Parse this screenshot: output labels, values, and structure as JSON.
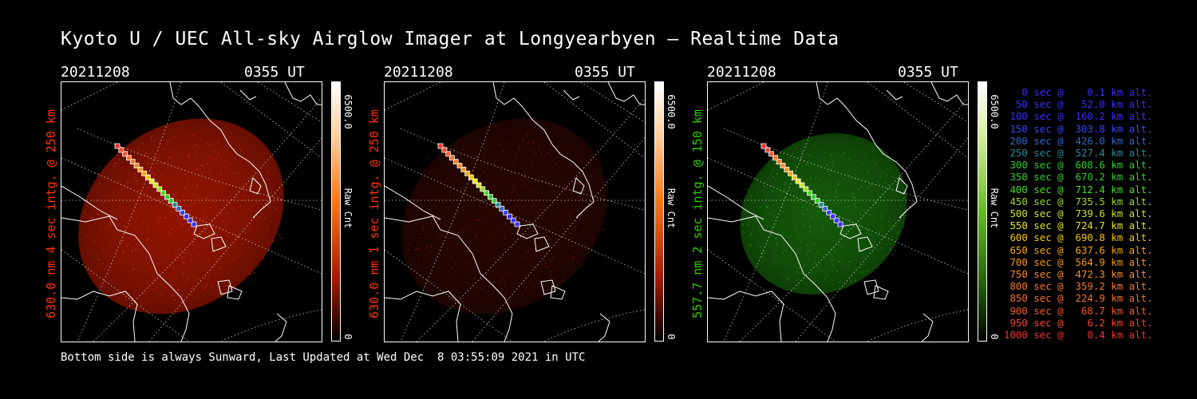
{
  "title": "Kyoto U / UEC All-sky Airglow Imager at Longyearbyen — Realtime Data",
  "footer": "Bottom side is always Sunward, Last Updated at Wed Dec  8 03:55:09 2021 in UTC",
  "colors": {
    "background": "#000000",
    "red_emission": "#b81a00",
    "green_emission": "#1f8c0e",
    "axis_label_red": "#ff3300",
    "axis_label_green": "#33cc00"
  },
  "panels": [
    {
      "date": "20211208",
      "time": "0355 UT",
      "ylabel": "630.0 nm 4 sec intg. @ 250 km",
      "cbar_max": "6500.0",
      "cbar_min": "0",
      "cbar_unit": "Raw Cnt",
      "emission": "red",
      "brightness": 0.8
    },
    {
      "date": "20211208",
      "time": "0355 UT",
      "ylabel": "630.0 nm 1 sec intg. @ 250 km",
      "cbar_max": "6500.0",
      "cbar_min": "0",
      "cbar_unit": "Raw Cnt",
      "emission": "red",
      "brightness": 0.22
    },
    {
      "date": "20211208",
      "time": "0355 UT",
      "ylabel": "557.7 nm 2 sec intg. @ 150 km",
      "cbar_max": "6500.0",
      "cbar_min": "0",
      "cbar_unit": "Raw Cnt",
      "emission": "green",
      "brightness": 0.65
    }
  ],
  "trajectory_legend": [
    {
      "text": "   0 sec @    0.1 km alt.",
      "color": "#3a2cff"
    },
    {
      "text": "  50 sec @   52.0 km alt.",
      "color": "#3a2cff"
    },
    {
      "text": " 100 sec @  160.2 km alt.",
      "color": "#3a2cff"
    },
    {
      "text": " 150 sec @  303.8 km alt.",
      "color": "#3346ff"
    },
    {
      "text": " 200 sec @  426.0 km alt.",
      "color": "#3366cc"
    },
    {
      "text": " 250 sec @  527.4 km alt.",
      "color": "#2a8a99"
    },
    {
      "text": " 300 sec @  608.6 km alt.",
      "color": "#33cc33"
    },
    {
      "text": " 350 sec @  670.2 km alt.",
      "color": "#33cc33"
    },
    {
      "text": " 400 sec @  712.4 km alt.",
      "color": "#44dd22"
    },
    {
      "text": " 450 sec @  735.5 km alt.",
      "color": "#99dd22"
    },
    {
      "text": " 500 sec @  739.6 km alt.",
      "color": "#c8e622"
    },
    {
      "text": " 550 sec @  724.7 km alt.",
      "color": "#e6e622"
    },
    {
      "text": " 600 sec @  690.8 km alt.",
      "color": "#f5c800"
    },
    {
      "text": " 650 sec @  637.6 km alt.",
      "color": "#f5a800"
    },
    {
      "text": " 700 sec @  564.9 km alt.",
      "color": "#f59a1a"
    },
    {
      "text": " 750 sec @  472.3 km alt.",
      "color": "#f58a2a"
    },
    {
      "text": " 800 sec @  359.2 km alt.",
      "color": "#f57a2a"
    },
    {
      "text": " 850 sec @  224.9 km alt.",
      "color": "#f5702a"
    },
    {
      "text": " 900 sec @   68.7 km alt.",
      "color": "#f55a2a"
    },
    {
      "text": " 950 sec @    6.2 km alt.",
      "color": "#f5442a"
    },
    {
      "text": "1000 sec @    0.4 km alt.",
      "color": "#f5302a"
    }
  ]
}
